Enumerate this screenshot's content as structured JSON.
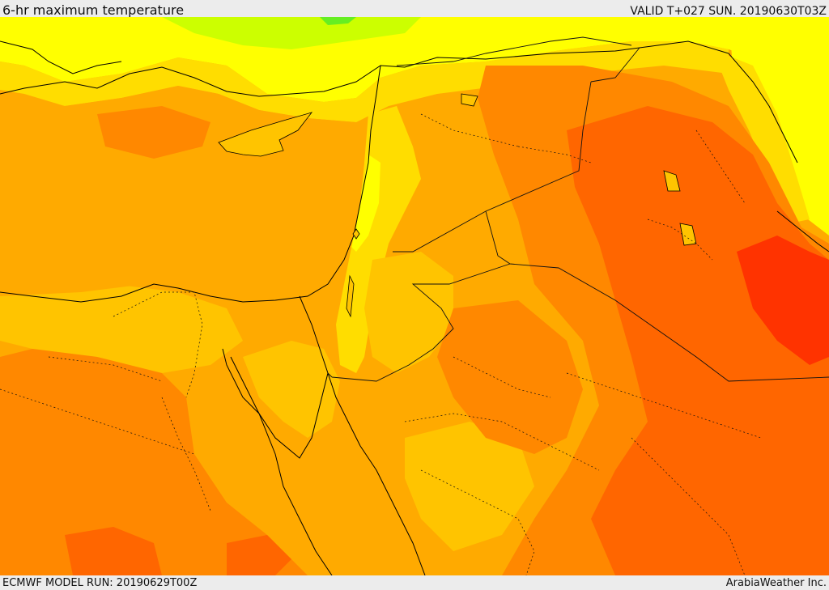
{
  "header": {
    "title": "6-hr maximum temperature",
    "valid": "VALID T+027 SUN. 20190630T03Z"
  },
  "footer": {
    "model_run": "ECMWF MODEL RUN: 20190629T00Z",
    "credit": "ArabiaWeather Inc."
  },
  "map": {
    "palette": {
      "green": "#66ee22",
      "lime": "#ccff00",
      "yellow": "#ffff00",
      "gold": "#ffdd00",
      "light_orange": "#ffc400",
      "orange": "#ffaa00",
      "dark_orange": "#ff8800",
      "red_orange": "#ff6600",
      "red": "#ff3300",
      "coastline": "#000000",
      "border": "#111111"
    }
  }
}
